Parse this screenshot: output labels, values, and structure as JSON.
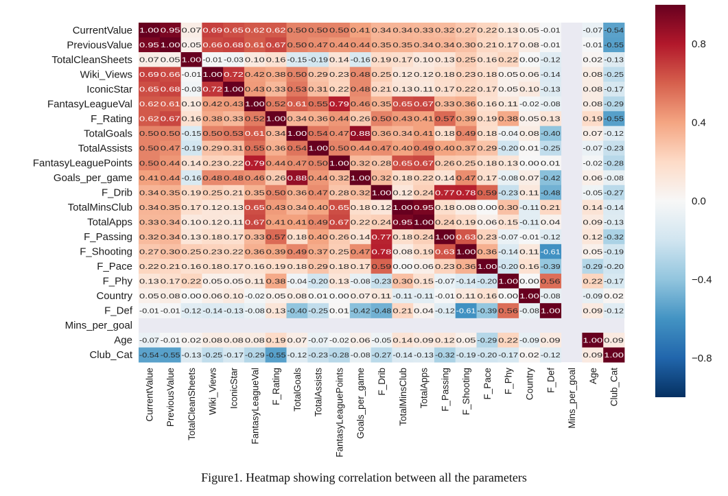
{
  "chart_data": {
    "type": "heatmap",
    "variables": [
      "CurrentValue",
      "PreviousValue",
      "TotalCleanSheets",
      "Wiki_Views",
      "IconicStar",
      "FantasyLeagueVal",
      "F_Rating",
      "TotalGoals",
      "TotalAssists",
      "FantasyLeaguePoints",
      "Goals_per_game",
      "F_Drib",
      "TotalMinsClub",
      "TotalApps",
      "F_Passing",
      "F_Shooting",
      "F_Pace",
      "F_Phy",
      "Country",
      "F_Def",
      "Mins_per_goal",
      "Age",
      "Club_Cat"
    ],
    "matrix": [
      [
        1.0,
        0.95,
        0.07,
        0.69,
        0.65,
        0.62,
        0.62,
        0.5,
        0.5,
        0.5,
        0.41,
        0.34,
        0.34,
        0.33,
        0.32,
        0.27,
        0.22,
        0.13,
        0.05,
        -0.01,
        null,
        -0.07,
        -0.54
      ],
      [
        0.95,
        1.0,
        0.05,
        0.66,
        0.68,
        0.61,
        0.67,
        0.5,
        0.47,
        0.44,
        0.44,
        0.35,
        0.35,
        0.34,
        0.34,
        0.3,
        0.21,
        0.17,
        0.08,
        -0.01,
        null,
        -0.01,
        -0.55
      ],
      [
        0.07,
        0.05,
        1.0,
        -0.01,
        -0.03,
        0.1,
        0.16,
        -0.15,
        -0.19,
        0.14,
        -0.16,
        0.19,
        0.17,
        0.1,
        0.13,
        0.25,
        0.16,
        0.22,
        -0.0,
        -0.12,
        null,
        0.02,
        -0.13
      ],
      [
        0.69,
        0.66,
        -0.01,
        1.0,
        0.72,
        0.42,
        0.38,
        0.5,
        0.29,
        0.23,
        0.48,
        0.25,
        0.12,
        0.12,
        0.18,
        0.23,
        0.18,
        0.05,
        0.06,
        -0.14,
        null,
        0.08,
        -0.25
      ],
      [
        0.65,
        0.68,
        -0.03,
        0.72,
        1.0,
        0.43,
        0.33,
        0.53,
        0.31,
        0.22,
        0.48,
        0.21,
        0.13,
        0.11,
        0.17,
        0.22,
        0.17,
        0.05,
        0.1,
        -0.13,
        null,
        0.08,
        -0.17
      ],
      [
        0.62,
        0.61,
        0.1,
        0.42,
        0.43,
        1.0,
        0.52,
        0.61,
        0.55,
        0.79,
        0.46,
        0.35,
        0.65,
        0.67,
        0.33,
        0.36,
        0.16,
        0.11,
        -0.02,
        -0.08,
        null,
        0.08,
        -0.29
      ],
      [
        0.62,
        0.67,
        0.16,
        0.38,
        0.33,
        0.52,
        1.0,
        0.34,
        0.36,
        0.44,
        0.26,
        0.5,
        0.43,
        0.41,
        0.57,
        0.39,
        0.19,
        0.38,
        0.05,
        0.13,
        null,
        0.19,
        -0.55
      ],
      [
        0.5,
        0.5,
        -0.15,
        0.5,
        0.53,
        0.61,
        0.34,
        1.0,
        0.54,
        0.47,
        0.88,
        0.36,
        0.34,
        0.41,
        0.18,
        0.49,
        0.18,
        -0.04,
        0.08,
        -0.4,
        null,
        0.07,
        -0.12
      ],
      [
        0.5,
        0.47,
        -0.19,
        0.29,
        0.31,
        0.55,
        0.36,
        0.54,
        1.0,
        0.5,
        0.44,
        0.47,
        0.4,
        0.49,
        0.4,
        0.37,
        0.29,
        -0.2,
        0.01,
        -0.25,
        null,
        -0.07,
        -0.23
      ],
      [
        0.5,
        0.44,
        0.14,
        0.23,
        0.22,
        0.79,
        0.44,
        0.47,
        0.5,
        1.0,
        0.32,
        0.28,
        0.65,
        0.67,
        0.26,
        0.25,
        0.18,
        0.13,
        0.0,
        0.01,
        null,
        -0.02,
        -0.28
      ],
      [
        0.41,
        0.44,
        -0.16,
        0.48,
        0.48,
        0.46,
        0.26,
        0.88,
        0.44,
        0.32,
        1.0,
        0.32,
        0.18,
        0.22,
        0.14,
        0.47,
        0.17,
        -0.08,
        0.07,
        -0.42,
        null,
        0.06,
        -0.08
      ],
      [
        0.34,
        0.35,
        0.19,
        0.25,
        0.21,
        0.35,
        0.5,
        0.36,
        0.47,
        0.28,
        0.32,
        1.0,
        0.12,
        0.24,
        0.77,
        0.78,
        0.59,
        -0.23,
        0.11,
        -0.48,
        null,
        -0.05,
        -0.27
      ],
      [
        0.34,
        0.35,
        0.17,
        0.12,
        0.13,
        0.65,
        0.43,
        0.34,
        0.4,
        0.65,
        0.18,
        0.12,
        1.0,
        0.95,
        0.18,
        0.08,
        -0.0,
        0.3,
        -0.11,
        0.21,
        null,
        0.14,
        -0.14
      ],
      [
        0.33,
        0.34,
        0.1,
        0.12,
        0.11,
        0.67,
        0.41,
        0.41,
        0.49,
        0.67,
        0.22,
        0.24,
        0.95,
        1.0,
        0.24,
        0.19,
        0.06,
        0.15,
        -0.11,
        0.04,
        null,
        0.09,
        -0.13
      ],
      [
        0.32,
        0.34,
        0.13,
        0.18,
        0.17,
        0.33,
        0.57,
        0.18,
        0.4,
        0.26,
        0.14,
        0.77,
        0.18,
        0.24,
        1.0,
        0.63,
        0.23,
        -0.07,
        -0.01,
        -0.12,
        null,
        0.12,
        -0.32
      ],
      [
        0.27,
        0.3,
        0.25,
        0.23,
        0.22,
        0.36,
        0.39,
        0.49,
        0.37,
        0.25,
        0.47,
        0.78,
        0.08,
        0.19,
        0.63,
        1.0,
        0.36,
        -0.14,
        0.11,
        -0.61,
        null,
        0.05,
        -0.19
      ],
      [
        0.22,
        0.21,
        0.16,
        0.18,
        0.17,
        0.16,
        0.19,
        0.18,
        0.29,
        0.18,
        0.17,
        0.59,
        -0.0,
        0.06,
        0.23,
        0.36,
        1.0,
        -0.2,
        0.16,
        -0.39,
        null,
        -0.29,
        -0.2
      ],
      [
        0.13,
        0.17,
        0.22,
        0.05,
        0.05,
        0.11,
        0.38,
        -0.04,
        -0.2,
        0.13,
        -0.08,
        -0.23,
        0.3,
        0.15,
        -0.07,
        -0.14,
        -0.2,
        1.0,
        0.0,
        0.56,
        null,
        0.22,
        -0.17
      ],
      [
        0.05,
        0.08,
        -0.0,
        0.06,
        0.1,
        -0.02,
        0.05,
        0.08,
        0.01,
        0.0,
        0.07,
        0.11,
        -0.11,
        -0.11,
        -0.01,
        0.11,
        0.16,
        0.0,
        1.0,
        -0.08,
        null,
        -0.09,
        0.02
      ],
      [
        -0.01,
        -0.01,
        -0.12,
        -0.14,
        -0.13,
        -0.08,
        0.13,
        -0.4,
        -0.25,
        0.01,
        -0.42,
        -0.48,
        0.21,
        0.04,
        -0.12,
        -0.61,
        -0.39,
        0.56,
        -0.08,
        1.0,
        null,
        0.09,
        -0.12
      ],
      [
        null,
        null,
        null,
        null,
        null,
        null,
        null,
        null,
        null,
        null,
        null,
        null,
        null,
        null,
        null,
        null,
        null,
        null,
        null,
        null,
        null,
        null,
        null
      ],
      [
        -0.07,
        -0.01,
        0.02,
        0.08,
        0.08,
        0.08,
        0.19,
        0.07,
        -0.07,
        -0.02,
        0.06,
        -0.05,
        0.14,
        0.09,
        0.12,
        0.05,
        -0.29,
        0.22,
        -0.09,
        0.09,
        null,
        1.0,
        0.09
      ],
      [
        -0.54,
        -0.55,
        -0.13,
        -0.25,
        -0.17,
        -0.29,
        -0.55,
        -0.12,
        -0.23,
        -0.28,
        -0.08,
        -0.27,
        -0.14,
        -0.13,
        -0.32,
        -0.19,
        -0.2,
        -0.17,
        0.02,
        -0.12,
        null,
        0.09,
        1.0
      ]
    ],
    "colormap": [
      "#053061",
      "#2166ac",
      "#4393c3",
      "#92c5de",
      "#d1e5f0",
      "#f7f7f7",
      "#fddbc7",
      "#f4a582",
      "#d6604d",
      "#b2182b",
      "#67001f"
    ],
    "missing_color": "#eaeaf2",
    "vmin": -1.0,
    "vmax": 1.0,
    "colorbar_ticks": [
      0.8,
      0.4,
      0.0,
      -0.4,
      -0.8
    ],
    "colorbar_labels": [
      "0.8",
      "0.4",
      "0.0",
      "−0.4",
      "−0.8"
    ],
    "caption": "Figure1. Heatmap showing correlation between all the parameters"
  }
}
